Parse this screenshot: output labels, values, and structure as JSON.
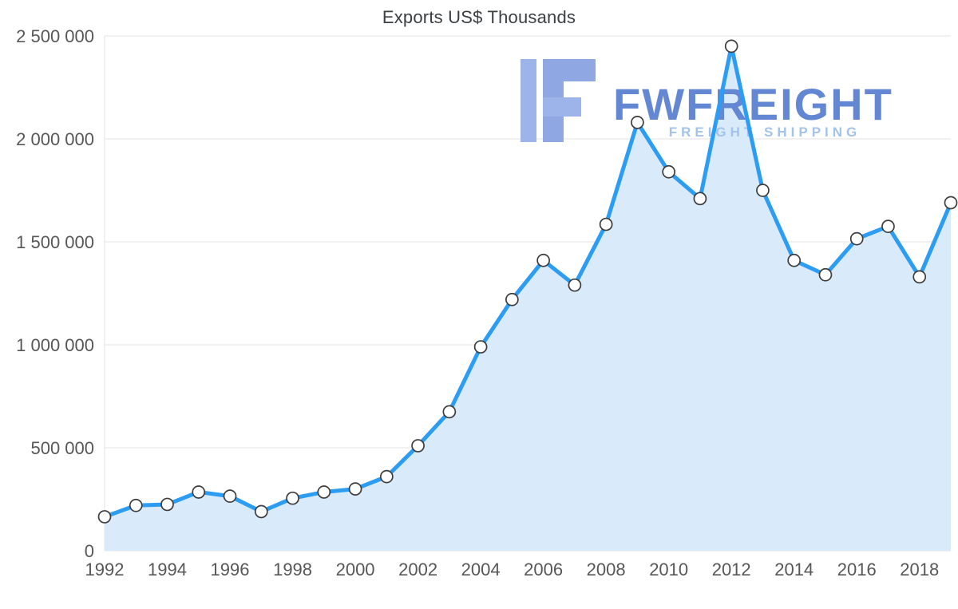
{
  "title": "Exports US$ Thousands",
  "watermark": {
    "brand": "FWFREIGHT",
    "subtitle": "FREIGHT SHIPPING"
  },
  "chart_data": {
    "type": "area",
    "title": "Exports US$ Thousands",
    "xlabel": "",
    "ylabel": "",
    "x": [
      1992,
      1993,
      1994,
      1995,
      1996,
      1997,
      1998,
      1999,
      2000,
      2001,
      2002,
      2003,
      2004,
      2005,
      2006,
      2007,
      2008,
      2009,
      2010,
      2011,
      2012,
      2013,
      2014,
      2015,
      2016,
      2017,
      2018,
      2019
    ],
    "series": [
      {
        "name": "Exports US$ Thousands",
        "values": [
          165000,
          220000,
          225000,
          285000,
          265000,
          190000,
          255000,
          285000,
          300000,
          360000,
          510000,
          675000,
          990000,
          1220000,
          1410000,
          1290000,
          1585000,
          2080000,
          1840000,
          1710000,
          2450000,
          1750000,
          1410000,
          1340000,
          1515000,
          1575000,
          1330000,
          1690000
        ]
      }
    ],
    "ylim": [
      0,
      2500000
    ],
    "yticks": [
      0,
      500000,
      1000000,
      1500000,
      2000000,
      2500000
    ],
    "ytick_labels": [
      "0",
      "500 000",
      "1 000 000",
      "1 500 000",
      "2 000 000",
      "2 500 000"
    ],
    "xticks": [
      1992,
      1994,
      1996,
      1998,
      2000,
      2002,
      2004,
      2006,
      2008,
      2010,
      2012,
      2014,
      2016,
      2018
    ],
    "grid": true,
    "legend_position": "none",
    "colors": {
      "line": "#2D9CF3",
      "fill": "#D9EAFA",
      "marker_fill": "#FFFFFF",
      "marker_stroke": "#3D3D3D",
      "grid": "#E3E3E3",
      "axis_text": "#575757",
      "watermark_main": "#6487D3",
      "watermark_sub": "#A3C3EA",
      "watermark_logo": "#8FA8E4",
      "watermark_logo_light": "#9DB4EA"
    }
  }
}
